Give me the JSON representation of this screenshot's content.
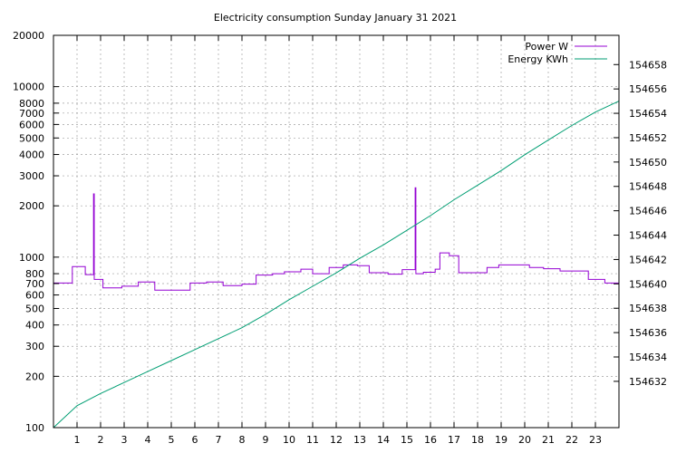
{
  "chart_data": {
    "type": "line",
    "title": "Electricity consumption Sunday January 31 2021",
    "x_ticks": [
      1,
      2,
      3,
      4,
      5,
      6,
      7,
      8,
      9,
      10,
      11,
      12,
      13,
      14,
      15,
      16,
      17,
      18,
      19,
      20,
      21,
      22,
      23
    ],
    "xlim": [
      0,
      24
    ],
    "y1": {
      "scale": "log",
      "ylim": [
        100,
        20000
      ],
      "ticks": [
        100,
        200,
        300,
        400,
        500,
        600,
        700,
        800,
        1000,
        2000,
        3000,
        4000,
        5000,
        6000,
        7000,
        8000,
        10000,
        20000
      ],
      "tick_labels": [
        "100",
        "200",
        "300",
        "400",
        "500",
        "600",
        "700",
        "800",
        "1000",
        "2000",
        "3000",
        "4000",
        "5000",
        "6000",
        "7000",
        "8000",
        "10000",
        "20000"
      ]
    },
    "y2": {
      "scale": "linear",
      "ylim": [
        154628.2,
        154660.4
      ],
      "ticks": [
        154632,
        154634,
        154636,
        154638,
        154640,
        154642,
        154644,
        154646,
        154648,
        154650,
        154652,
        154654,
        154656,
        154658
      ],
      "tick_labels": [
        "154632",
        "154634",
        "154636",
        "154638",
        "154640",
        "154642",
        "154644",
        "154646",
        "154648",
        "154650",
        "154652",
        "154654",
        "154656",
        "154658"
      ]
    },
    "grid": true,
    "legend_position": "top-right",
    "series": [
      {
        "name": "Power W",
        "axis": "y1",
        "color": "#9400d3",
        "step": true,
        "points": [
          [
            0,
            705
          ],
          [
            0.8,
            880
          ],
          [
            1.35,
            790
          ],
          [
            1.7,
            2350
          ],
          [
            1.73,
            740
          ],
          [
            2.1,
            660
          ],
          [
            2.9,
            675
          ],
          [
            3.6,
            715
          ],
          [
            4.3,
            640
          ],
          [
            5.8,
            705
          ],
          [
            6.5,
            715
          ],
          [
            7.2,
            680
          ],
          [
            8.0,
            695
          ],
          [
            8.6,
            785
          ],
          [
            9.3,
            800
          ],
          [
            9.8,
            820
          ],
          [
            10.5,
            850
          ],
          [
            11.0,
            800
          ],
          [
            11.7,
            870
          ],
          [
            12.3,
            900
          ],
          [
            12.9,
            890
          ],
          [
            13.4,
            810
          ],
          [
            14.2,
            795
          ],
          [
            14.8,
            845
          ],
          [
            15.35,
            2550
          ],
          [
            15.38,
            800
          ],
          [
            15.7,
            815
          ],
          [
            16.2,
            850
          ],
          [
            16.4,
            1060
          ],
          [
            16.8,
            1020
          ],
          [
            17.2,
            810
          ],
          [
            18.4,
            870
          ],
          [
            18.9,
            900
          ],
          [
            20.2,
            870
          ],
          [
            20.8,
            855
          ],
          [
            21.5,
            830
          ],
          [
            22.7,
            740
          ],
          [
            23.4,
            705
          ],
          [
            24,
            705
          ]
        ]
      },
      {
        "name": "Energy KWh",
        "axis": "y2",
        "color": "#009e73",
        "step": false,
        "points": [
          [
            0,
            154628.2
          ],
          [
            1,
            154630.0
          ],
          [
            2,
            154631.0
          ],
          [
            3,
            154631.9
          ],
          [
            4,
            154632.8
          ],
          [
            5,
            154633.7
          ],
          [
            6,
            154634.6
          ],
          [
            7,
            154635.5
          ],
          [
            8,
            154636.4
          ],
          [
            9,
            154637.5
          ],
          [
            10,
            154638.7
          ],
          [
            11,
            154639.8
          ],
          [
            12,
            154640.9
          ],
          [
            13,
            154642.1
          ],
          [
            14,
            154643.2
          ],
          [
            15,
            154644.4
          ],
          [
            16,
            154645.6
          ],
          [
            17,
            154646.9
          ],
          [
            18,
            154648.1
          ],
          [
            19,
            154649.3
          ],
          [
            20,
            154650.6
          ],
          [
            21,
            154651.8
          ],
          [
            22,
            154653.0
          ],
          [
            23,
            154654.1
          ],
          [
            24,
            154655.0
          ]
        ]
      }
    ]
  }
}
